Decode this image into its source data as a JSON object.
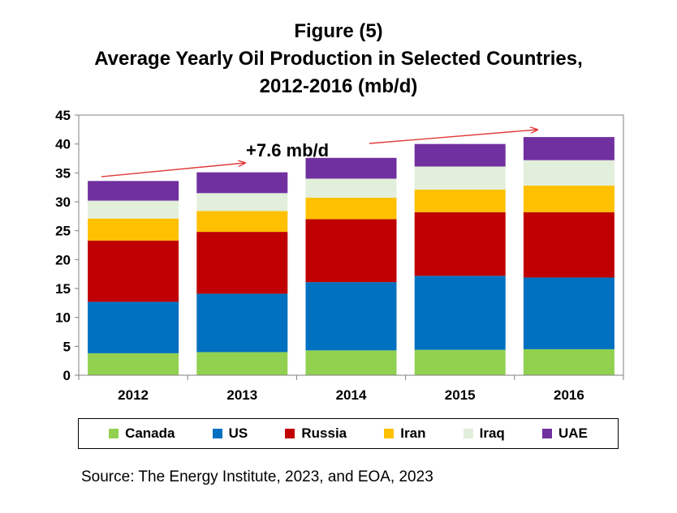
{
  "figure": {
    "line1": "Figure (5)",
    "line2": "Average Yearly Oil Production in Selected Countries,",
    "line3": "2012-2016 (mb/d)"
  },
  "annotation": "+7.6 mb/d",
  "source": "Source: The Energy Institute, 2023, and EOA, 2023",
  "chart_data": {
    "type": "bar",
    "stacked": true,
    "title": "Figure (5) Average Yearly Oil Production in Selected Countries, 2012-2016 (mb/d)",
    "categories": [
      "2012",
      "2013",
      "2014",
      "2015",
      "2016"
    ],
    "ylim": [
      0,
      45
    ],
    "yticks": [
      0,
      5,
      10,
      15,
      20,
      25,
      30,
      35,
      40,
      45
    ],
    "grid": false,
    "legend_position": "bottom",
    "series": [
      {
        "name": "Canada",
        "color": "#92D050",
        "values": [
          3.8,
          4.0,
          4.3,
          4.4,
          4.5
        ]
      },
      {
        "name": "US",
        "color": "#0070C0",
        "values": [
          8.9,
          10.1,
          11.8,
          12.8,
          12.4
        ]
      },
      {
        "name": "Russia",
        "color": "#C00000",
        "values": [
          10.6,
          10.7,
          10.9,
          11.0,
          11.3
        ]
      },
      {
        "name": "Iran",
        "color": "#FFC000",
        "values": [
          3.8,
          3.6,
          3.7,
          3.9,
          4.6
        ]
      },
      {
        "name": "Iraq",
        "color": "#E2EFDA",
        "values": [
          3.1,
          3.1,
          3.3,
          4.0,
          4.4
        ]
      },
      {
        "name": "UAE",
        "color": "#7030A0",
        "values": [
          3.4,
          3.6,
          3.6,
          3.9,
          4.0
        ]
      }
    ],
    "annotations": [
      {
        "text": "+7.6 mb/d"
      }
    ]
  }
}
